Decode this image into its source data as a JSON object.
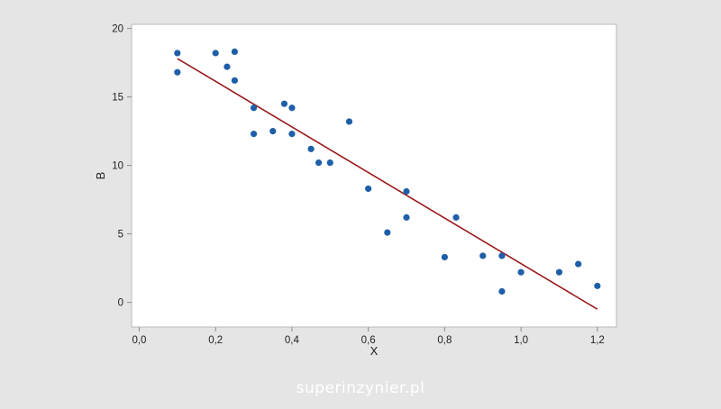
{
  "chart_data": {
    "type": "scatter",
    "title": "",
    "xlabel": "X",
    "ylabel": "B",
    "xlim": [
      -0.02,
      1.25
    ],
    "ylim": [
      -1.8,
      20.3
    ],
    "x_ticks": [
      0.0,
      0.2,
      0.4,
      0.6,
      0.8,
      1.0,
      1.2
    ],
    "x_tick_labels": [
      "0,0",
      "0,2",
      "0,4",
      "0,6",
      "0,8",
      "1,0",
      "1,2"
    ],
    "y_ticks": [
      0,
      5,
      10,
      15,
      20
    ],
    "y_tick_labels": [
      "0",
      "5",
      "10",
      "15",
      "20"
    ],
    "grid": false,
    "series": [
      {
        "marker_color": "#1f5fa8",
        "points": [
          {
            "x": 0.1,
            "y": 18.2
          },
          {
            "x": 0.1,
            "y": 16.8
          },
          {
            "x": 0.2,
            "y": 18.2
          },
          {
            "x": 0.23,
            "y": 17.2
          },
          {
            "x": 0.25,
            "y": 18.3
          },
          {
            "x": 0.25,
            "y": 16.2
          },
          {
            "x": 0.3,
            "y": 14.2
          },
          {
            "x": 0.3,
            "y": 12.3
          },
          {
            "x": 0.35,
            "y": 12.5
          },
          {
            "x": 0.38,
            "y": 14.5
          },
          {
            "x": 0.4,
            "y": 14.2
          },
          {
            "x": 0.4,
            "y": 12.3
          },
          {
            "x": 0.45,
            "y": 11.2
          },
          {
            "x": 0.47,
            "y": 10.2
          },
          {
            "x": 0.5,
            "y": 10.2
          },
          {
            "x": 0.55,
            "y": 13.2
          },
          {
            "x": 0.6,
            "y": 8.3
          },
          {
            "x": 0.65,
            "y": 5.1
          },
          {
            "x": 0.7,
            "y": 8.1
          },
          {
            "x": 0.7,
            "y": 6.2
          },
          {
            "x": 0.8,
            "y": 3.3
          },
          {
            "x": 0.83,
            "y": 6.2
          },
          {
            "x": 0.9,
            "y": 3.4
          },
          {
            "x": 0.95,
            "y": 3.4
          },
          {
            "x": 0.95,
            "y": 0.8
          },
          {
            "x": 1.0,
            "y": 2.2
          },
          {
            "x": 1.1,
            "y": 2.2
          },
          {
            "x": 1.15,
            "y": 2.8
          },
          {
            "x": 1.2,
            "y": 1.2
          }
        ]
      }
    ],
    "fit_line": {
      "color": "#9a1a1a",
      "points": [
        {
          "x": 0.1,
          "y": 17.8
        },
        {
          "x": 1.2,
          "y": -0.5
        }
      ]
    }
  },
  "watermark": "superinzynier.pl"
}
